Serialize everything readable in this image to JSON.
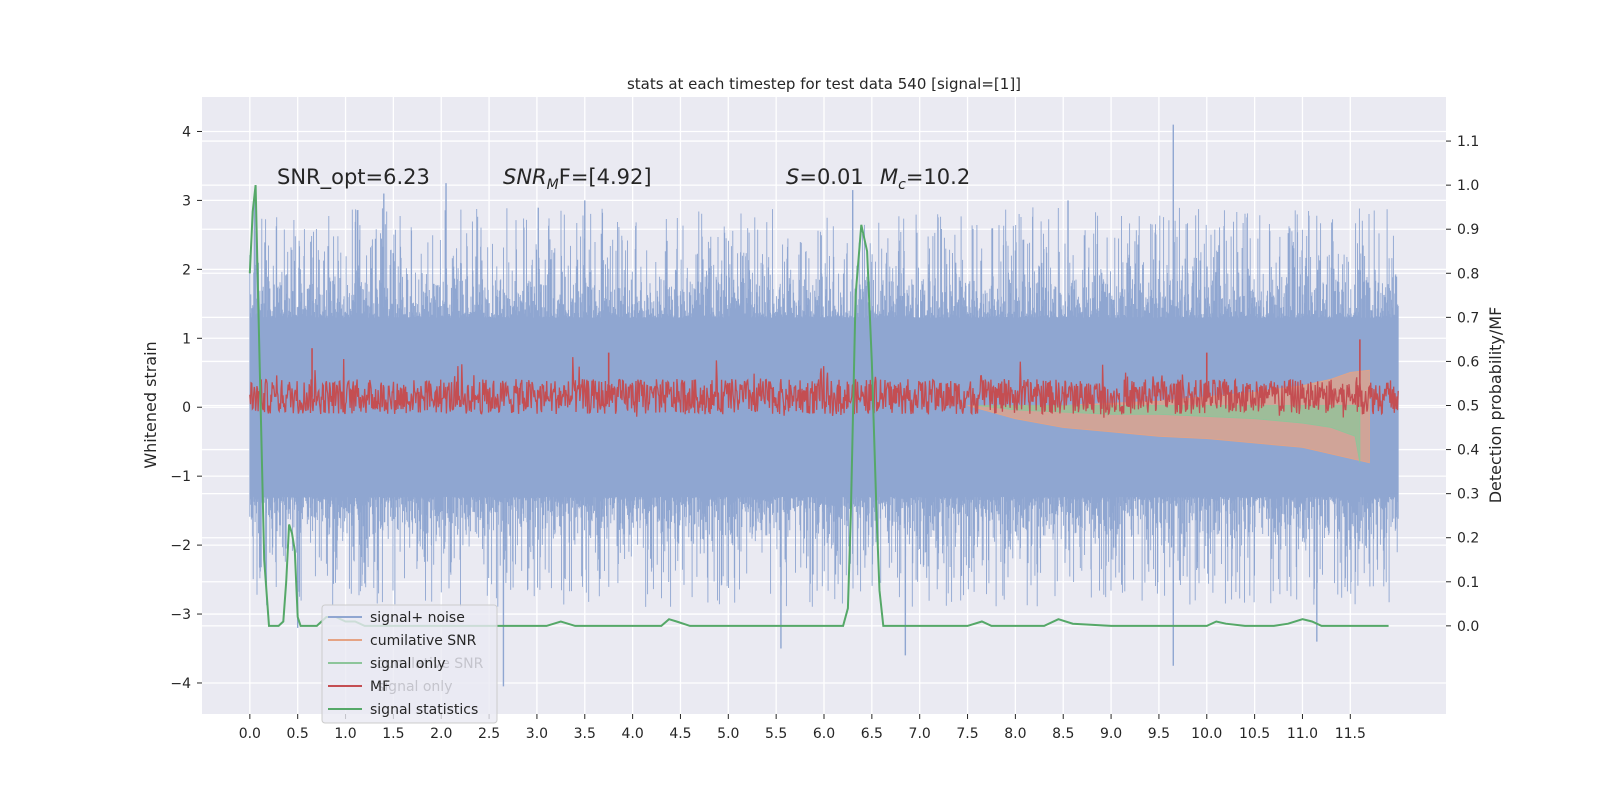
{
  "chart_data": {
    "type": "line",
    "title": "stats at each timestep for test data 540 [signal=[1]]",
    "xlabel": "",
    "ylabel": "Whitened strain",
    "y2label": "Detection probability/MF",
    "xlim": [
      -0.5,
      12.5
    ],
    "ylim": [
      -4.45,
      4.5
    ],
    "y2lim": [
      -0.2,
      1.2
    ],
    "xticks": [
      "0.0",
      "0.5",
      "1.0",
      "1.5",
      "2.0",
      "2.5",
      "3.0",
      "3.5",
      "4.0",
      "4.5",
      "5.0",
      "5.5",
      "6.0",
      "6.5",
      "7.0",
      "7.5",
      "8.0",
      "8.5",
      "9.0",
      "9.5",
      "10.0",
      "10.5",
      "11.0",
      "11.5"
    ],
    "yticks": [
      "4",
      "3",
      "2",
      "1",
      "0",
      "−1",
      "−2",
      "−3",
      "−4"
    ],
    "y2ticks": [
      "1.1",
      "1.0",
      "0.9",
      "0.8",
      "0.7",
      "0.6",
      "0.5",
      "0.4",
      "0.3",
      "0.2",
      "0.1",
      "0.0"
    ],
    "annotations": {
      "snr_opt": "SNR_opt=6.23",
      "snr_mf_name": "SNR",
      "snr_mf_sub": "M",
      "snr_mf_rest": "F=[4.92]",
      "s_name": "S",
      "s_value": "=0.01",
      "mc_name": "M",
      "mc_sub": "c",
      "mc_value": "=10.2"
    },
    "legend": {
      "position": "lower-left",
      "entries": [
        {
          "label": "signal+ noise",
          "color": "#8fa6d1"
        },
        {
          "label": "cumilative SNR",
          "color": "#e5a384"
        },
        {
          "label": "signal only",
          "color": "#8dc59a"
        },
        {
          "label": "MF",
          "color": "#c44e52"
        },
        {
          "label": "signal statistics",
          "color": "#55a868"
        }
      ],
      "ghost_labels": [
        "cumilative SNR",
        "signal only"
      ]
    },
    "series": [
      {
        "name": "signal statistics",
        "axis": "right",
        "color": "#55a868",
        "x": [
          0.0,
          0.03,
          0.06,
          0.1,
          0.15,
          0.2,
          0.24,
          0.3,
          0.35,
          0.38,
          0.41,
          0.44,
          0.47,
          0.5,
          0.53,
          0.57,
          0.62,
          0.7,
          0.8,
          0.9,
          1.0,
          1.1,
          1.2,
          1.3,
          1.5,
          2.0,
          2.5,
          2.8,
          3.1,
          3.25,
          3.4,
          3.6,
          4.0,
          4.3,
          4.38,
          4.46,
          4.6,
          5.0,
          5.5,
          6.0,
          6.2,
          6.25,
          6.28,
          6.33,
          6.39,
          6.45,
          6.5,
          6.55,
          6.58,
          6.62,
          6.7,
          7.0,
          7.5,
          7.65,
          7.75,
          8.0,
          8.3,
          8.45,
          8.6,
          9.0,
          9.5,
          9.7,
          10.0,
          10.1,
          10.2,
          10.4,
          10.6,
          10.7,
          10.85,
          11.0,
          11.1,
          11.2,
          11.5,
          11.8,
          11.9
        ],
        "y": [
          0.8,
          0.94,
          1.0,
          0.62,
          0.15,
          0.0,
          0.0,
          0.0,
          0.01,
          0.1,
          0.23,
          0.21,
          0.17,
          0.02,
          0.0,
          0.0,
          0.0,
          0.0,
          0.02,
          0.02,
          0.01,
          0.01,
          0.0,
          0.0,
          0.0,
          0.0,
          0.0,
          0.0,
          0.0,
          0.01,
          0.0,
          0.0,
          0.0,
          0.0,
          0.015,
          0.01,
          0.0,
          0.0,
          0.0,
          0.0,
          0.0,
          0.04,
          0.25,
          0.75,
          0.91,
          0.85,
          0.6,
          0.25,
          0.08,
          0.0,
          0.0,
          0.0,
          0.0,
          0.01,
          0.0,
          0.0,
          0.0,
          0.015,
          0.005,
          0.0,
          0.0,
          0.0,
          0.0,
          0.01,
          0.005,
          0.0,
          0.0,
          0.0,
          0.005,
          0.015,
          0.01,
          0.0,
          0.0,
          0.0,
          0.0
        ]
      },
      {
        "name": "cumilative SNR",
        "axis": "right",
        "color": "#e5a384",
        "x": [
          7.5,
          8.0,
          8.5,
          9.0,
          9.5,
          10.0,
          10.5,
          11.0,
          11.3,
          11.5,
          11.7
        ],
        "upper": [
          0.5,
          0.5,
          0.5,
          0.505,
          0.51,
          0.52,
          0.53,
          0.545,
          0.56,
          0.575,
          0.58
        ],
        "lower": [
          0.5,
          0.47,
          0.45,
          0.44,
          0.43,
          0.425,
          0.415,
          0.405,
          0.39,
          0.38,
          0.37
        ]
      },
      {
        "name": "signal only",
        "axis": "right",
        "color": "#8dc59a",
        "x": [
          7.6,
          8.0,
          8.5,
          9.0,
          9.5,
          10.0,
          10.5,
          11.0,
          11.3,
          11.55,
          11.6
        ],
        "upper": [
          0.5,
          0.5,
          0.5,
          0.5,
          0.5,
          0.5,
          0.5,
          0.5,
          0.5,
          0.5,
          0.5
        ],
        "lower": [
          0.5,
          0.49,
          0.485,
          0.48,
          0.48,
          0.475,
          0.47,
          0.46,
          0.45,
          0.43,
          0.37
        ]
      },
      {
        "name": "signal+ noise",
        "axis": "left",
        "color": "#8fa6d1",
        "x_range": [
          0.0,
          12.0
        ],
        "typical_amplitude": 1.3,
        "peak_spikes": [
          {
            "x": 0.05,
            "y": 3.1
          },
          {
            "x": 2.05,
            "y": 3.25
          },
          {
            "x": 6.3,
            "y": 3.15
          },
          {
            "x": 9.65,
            "y": 4.1
          },
          {
            "x": 1.4,
            "y": 3.1
          },
          {
            "x": 3.5,
            "y": 3.0
          },
          {
            "x": 8.55,
            "y": 3.0
          },
          {
            "x": 2.65,
            "y": -4.05
          },
          {
            "x": 6.85,
            "y": -3.6
          },
          {
            "x": 9.65,
            "y": -3.75
          },
          {
            "x": 5.55,
            "y": -3.5
          },
          {
            "x": 11.15,
            "y": -3.4
          },
          {
            "x": 0.5,
            "y": -3.2
          }
        ]
      },
      {
        "name": "MF",
        "axis": "right",
        "color": "#c44e52",
        "x_range": [
          0.0,
          12.0
        ],
        "baseline": 0.52,
        "typical_spread": 0.04,
        "peak_spikes": [
          {
            "x": 0.65,
            "y": 0.63
          },
          {
            "x": 3.75,
            "y": 0.62
          },
          {
            "x": 10.0,
            "y": 0.62
          },
          {
            "x": 11.6,
            "y": 0.65
          }
        ]
      }
    ]
  }
}
